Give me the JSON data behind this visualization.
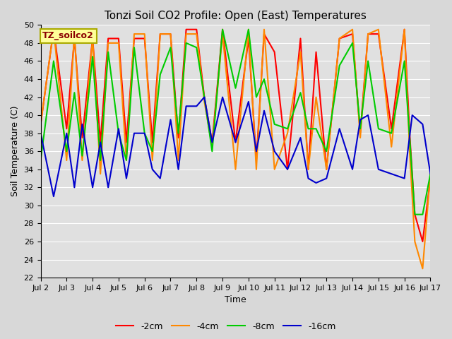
{
  "title": "Tonzi Soil CO2 Profile: Open (East) Temperatures",
  "xlabel": "Time",
  "ylabel": "Soil Temperature (C)",
  "ylim": [
    22,
    50
  ],
  "xlim": [
    2,
    17
  ],
  "xtick_labels": [
    "Jul 2",
    "Jul 3",
    "Jul 4",
    "Jul 5",
    "Jul 6",
    "Jul 7",
    "Jul 8",
    "Jul 9",
    "Jul 10",
    "Jul 11",
    "Jul 12",
    "Jul 13",
    "Jul 14",
    "Jul 15",
    "Jul 16",
    "Jul 17"
  ],
  "xtick_positions": [
    2,
    3,
    4,
    5,
    6,
    7,
    8,
    9,
    10,
    11,
    12,
    13,
    14,
    15,
    16,
    17
  ],
  "ytick_positions": [
    22,
    24,
    26,
    28,
    30,
    32,
    34,
    36,
    38,
    40,
    42,
    44,
    46,
    48,
    50
  ],
  "background_color": "#d8d8d8",
  "plot_bg_color": "#e0e0e0",
  "grid_color": "#ffffff",
  "legend_label": "TZ_soilco2",
  "legend_bg": "#ffff99",
  "legend_border": "#aaaa00",
  "series": {
    "neg2cm": {
      "label": "-2cm",
      "color": "#ff0000",
      "x": [
        2.0,
        2.5,
        3.0,
        3.3,
        3.6,
        4.0,
        4.3,
        4.6,
        5.0,
        5.3,
        5.6,
        6.0,
        6.3,
        6.6,
        7.0,
        7.3,
        7.6,
        8.0,
        8.3,
        8.6,
        9.0,
        9.5,
        10.0,
        10.3,
        10.6,
        11.0,
        11.5,
        12.0,
        12.3,
        12.6,
        13.0,
        13.5,
        14.0,
        14.3,
        14.6,
        15.0,
        15.5,
        16.0,
        16.2,
        16.4,
        16.7,
        17.0
      ],
      "y": [
        39.0,
        49.5,
        38.5,
        48.5,
        37.5,
        48.5,
        37.0,
        48.5,
        48.5,
        37.0,
        48.5,
        48.5,
        37.0,
        49.0,
        49.0,
        37.5,
        49.5,
        49.5,
        42.0,
        37.0,
        49.5,
        37.0,
        48.5,
        35.0,
        49.0,
        47.0,
        34.0,
        48.5,
        34.0,
        47.0,
        34.0,
        48.5,
        49.0,
        38.0,
        49.0,
        49.0,
        38.5,
        49.5,
        38.0,
        29.0,
        26.0,
        33.0
      ]
    },
    "neg4cm": {
      "label": "-4cm",
      "color": "#ff8800",
      "x": [
        2.0,
        2.5,
        3.0,
        3.3,
        3.6,
        4.0,
        4.3,
        4.6,
        5.0,
        5.3,
        5.6,
        6.0,
        6.3,
        6.6,
        7.0,
        7.3,
        7.6,
        8.0,
        8.3,
        8.6,
        9.0,
        9.5,
        10.0,
        10.3,
        10.6,
        11.0,
        11.5,
        12.0,
        12.3,
        12.6,
        13.0,
        13.5,
        14.0,
        14.3,
        14.6,
        15.0,
        15.5,
        16.0,
        16.2,
        16.4,
        16.7,
        17.0
      ],
      "y": [
        39.0,
        49.5,
        35.0,
        49.0,
        35.0,
        48.5,
        33.5,
        48.0,
        48.0,
        35.0,
        49.0,
        49.0,
        35.0,
        49.0,
        49.0,
        35.0,
        49.0,
        49.0,
        41.5,
        36.5,
        49.0,
        34.0,
        49.5,
        34.0,
        49.5,
        34.0,
        38.0,
        47.0,
        34.0,
        42.0,
        34.0,
        48.5,
        49.5,
        37.5,
        49.0,
        49.5,
        36.5,
        49.5,
        36.0,
        26.0,
        23.0,
        33.5
      ]
    },
    "neg8cm": {
      "label": "-8cm",
      "color": "#00cc00",
      "x": [
        2.0,
        2.5,
        3.0,
        3.3,
        3.6,
        4.0,
        4.3,
        4.6,
        5.0,
        5.3,
        5.6,
        6.0,
        6.3,
        6.6,
        7.0,
        7.3,
        7.6,
        8.0,
        8.3,
        8.6,
        9.0,
        9.5,
        10.0,
        10.3,
        10.6,
        11.0,
        11.5,
        12.0,
        12.3,
        12.6,
        13.0,
        13.5,
        14.0,
        14.3,
        14.6,
        15.0,
        15.5,
        16.0,
        16.2,
        16.4,
        16.7,
        17.0
      ],
      "y": [
        35.0,
        46.0,
        36.0,
        42.5,
        35.5,
        46.5,
        35.0,
        47.0,
        38.0,
        35.0,
        47.5,
        38.0,
        36.0,
        44.5,
        47.5,
        38.0,
        48.0,
        47.5,
        42.0,
        36.0,
        49.5,
        43.0,
        49.5,
        42.0,
        44.0,
        39.0,
        38.5,
        42.5,
        38.5,
        38.5,
        36.0,
        45.5,
        48.0,
        38.5,
        46.0,
        38.5,
        38.0,
        46.0,
        37.5,
        29.0,
        29.0,
        33.5
      ]
    },
    "neg16cm": {
      "label": "-16cm",
      "color": "#0000cc",
      "x": [
        2.0,
        2.5,
        3.0,
        3.3,
        3.6,
        4.0,
        4.3,
        4.6,
        5.0,
        5.3,
        5.6,
        6.0,
        6.3,
        6.6,
        7.0,
        7.3,
        7.6,
        8.0,
        8.3,
        8.6,
        9.0,
        9.5,
        10.0,
        10.3,
        10.6,
        11.0,
        11.5,
        12.0,
        12.3,
        12.6,
        13.0,
        13.5,
        14.0,
        14.3,
        14.6,
        15.0,
        15.5,
        16.0,
        16.3,
        16.7,
        17.0
      ],
      "y": [
        38.0,
        31.0,
        38.0,
        32.0,
        39.0,
        32.0,
        37.0,
        32.0,
        38.5,
        33.0,
        38.0,
        38.0,
        34.0,
        33.0,
        39.5,
        34.0,
        41.0,
        41.0,
        42.0,
        37.0,
        42.0,
        37.0,
        41.5,
        36.0,
        40.5,
        36.0,
        34.0,
        37.5,
        33.0,
        32.5,
        33.0,
        38.5,
        34.0,
        39.5,
        40.0,
        34.0,
        33.5,
        33.0,
        40.0,
        39.0,
        33.5
      ]
    }
  },
  "figsize": [
    6.4,
    4.8
  ],
  "dpi": 100,
  "title_fontsize": 11,
  "axis_fontsize": 9,
  "tick_fontsize": 8,
  "linewidth": 1.5
}
